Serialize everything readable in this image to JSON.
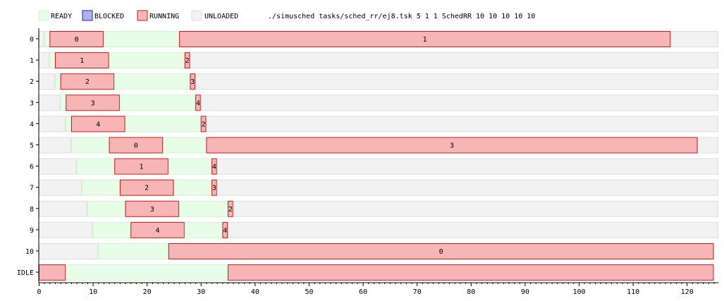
{
  "command_line": "./simusched tasks/sched_rr/ej8.tsk 5 1 1 SchedRR 10 10 10 10 10",
  "legend": [
    {
      "label": "READY",
      "state": "ready"
    },
    {
      "label": "BLOCKED",
      "state": "blocked"
    },
    {
      "label": "RUNNING",
      "state": "running"
    },
    {
      "label": "UNLOADED",
      "state": "unloaded"
    }
  ],
  "colors": {
    "ready_fill": "#e8fde8",
    "ready_stroke": "#d6f1d6",
    "blocked_fill": "#b0b0f0",
    "blocked_stroke": "#2a2a8f",
    "running_fill": "#f7b5b5",
    "running_stroke": "#c0201e",
    "unloaded_fill": "#f2f2f2",
    "unloaded_stroke": "#dddddd"
  },
  "chart_data": {
    "type": "gantt",
    "xlim": [
      0,
      126
    ],
    "x_ticks": [
      0,
      10,
      20,
      30,
      40,
      50,
      60,
      70,
      80,
      90,
      100,
      110,
      120
    ],
    "rows": [
      {
        "label": "0",
        "segments": [
          {
            "state": "unloaded",
            "start": 0,
            "end": 1
          },
          {
            "state": "ready",
            "start": 1,
            "end": 2
          },
          {
            "state": "running",
            "start": 2,
            "end": 12,
            "label": "0"
          },
          {
            "state": "ready",
            "start": 12,
            "end": 26
          },
          {
            "state": "running",
            "start": 26,
            "end": 117,
            "label": "1"
          },
          {
            "state": "unloaded",
            "start": 117,
            "end": 126
          }
        ]
      },
      {
        "label": "1",
        "segments": [
          {
            "state": "unloaded",
            "start": 0,
            "end": 2
          },
          {
            "state": "ready",
            "start": 2,
            "end": 3
          },
          {
            "state": "running",
            "start": 3,
            "end": 13,
            "label": "1"
          },
          {
            "state": "ready",
            "start": 13,
            "end": 27
          },
          {
            "state": "running",
            "start": 27,
            "end": 28,
            "label": "2"
          },
          {
            "state": "unloaded",
            "start": 28,
            "end": 126
          }
        ]
      },
      {
        "label": "2",
        "segments": [
          {
            "state": "unloaded",
            "start": 0,
            "end": 3
          },
          {
            "state": "ready",
            "start": 3,
            "end": 4
          },
          {
            "state": "running",
            "start": 4,
            "end": 14,
            "label": "2"
          },
          {
            "state": "ready",
            "start": 14,
            "end": 28
          },
          {
            "state": "running",
            "start": 28,
            "end": 29,
            "label": "3"
          },
          {
            "state": "unloaded",
            "start": 29,
            "end": 126
          }
        ]
      },
      {
        "label": "3",
        "segments": [
          {
            "state": "unloaded",
            "start": 0,
            "end": 4
          },
          {
            "state": "ready",
            "start": 4,
            "end": 5
          },
          {
            "state": "running",
            "start": 5,
            "end": 15,
            "label": "3"
          },
          {
            "state": "ready",
            "start": 15,
            "end": 29
          },
          {
            "state": "running",
            "start": 29,
            "end": 30,
            "label": "4"
          },
          {
            "state": "unloaded",
            "start": 30,
            "end": 126
          }
        ]
      },
      {
        "label": "4",
        "segments": [
          {
            "state": "unloaded",
            "start": 0,
            "end": 5
          },
          {
            "state": "ready",
            "start": 5,
            "end": 6
          },
          {
            "state": "running",
            "start": 6,
            "end": 16,
            "label": "4"
          },
          {
            "state": "ready",
            "start": 16,
            "end": 30
          },
          {
            "state": "running",
            "start": 30,
            "end": 31,
            "label": "2"
          },
          {
            "state": "unloaded",
            "start": 31,
            "end": 126
          }
        ]
      },
      {
        "label": "5",
        "segments": [
          {
            "state": "unloaded",
            "start": 0,
            "end": 6
          },
          {
            "state": "ready",
            "start": 6,
            "end": 13
          },
          {
            "state": "running",
            "start": 13,
            "end": 23,
            "label": "0"
          },
          {
            "state": "ready",
            "start": 23,
            "end": 31
          },
          {
            "state": "running",
            "start": 31,
            "end": 122,
            "label": "3"
          },
          {
            "state": "unloaded",
            "start": 122,
            "end": 126
          }
        ]
      },
      {
        "label": "6",
        "segments": [
          {
            "state": "unloaded",
            "start": 0,
            "end": 7
          },
          {
            "state": "ready",
            "start": 7,
            "end": 14
          },
          {
            "state": "running",
            "start": 14,
            "end": 24,
            "label": "1"
          },
          {
            "state": "ready",
            "start": 24,
            "end": 32
          },
          {
            "state": "running",
            "start": 32,
            "end": 33,
            "label": "4"
          },
          {
            "state": "unloaded",
            "start": 33,
            "end": 126
          }
        ]
      },
      {
        "label": "7",
        "segments": [
          {
            "state": "unloaded",
            "start": 0,
            "end": 8
          },
          {
            "state": "ready",
            "start": 8,
            "end": 15
          },
          {
            "state": "running",
            "start": 15,
            "end": 25,
            "label": "2"
          },
          {
            "state": "ready",
            "start": 25,
            "end": 32
          },
          {
            "state": "running",
            "start": 32,
            "end": 33,
            "label": "3"
          },
          {
            "state": "unloaded",
            "start": 33,
            "end": 126
          }
        ]
      },
      {
        "label": "8",
        "segments": [
          {
            "state": "unloaded",
            "start": 0,
            "end": 9
          },
          {
            "state": "ready",
            "start": 9,
            "end": 16
          },
          {
            "state": "running",
            "start": 16,
            "end": 26,
            "label": "3"
          },
          {
            "state": "ready",
            "start": 26,
            "end": 35
          },
          {
            "state": "running",
            "start": 35,
            "end": 36,
            "label": "2"
          },
          {
            "state": "unloaded",
            "start": 36,
            "end": 126
          }
        ]
      },
      {
        "label": "9",
        "segments": [
          {
            "state": "unloaded",
            "start": 0,
            "end": 10
          },
          {
            "state": "ready",
            "start": 10,
            "end": 17
          },
          {
            "state": "running",
            "start": 17,
            "end": 27,
            "label": "4"
          },
          {
            "state": "ready",
            "start": 27,
            "end": 34
          },
          {
            "state": "running",
            "start": 34,
            "end": 35,
            "label": "4"
          },
          {
            "state": "unloaded",
            "start": 35,
            "end": 126
          }
        ]
      },
      {
        "label": "10",
        "segments": [
          {
            "state": "unloaded",
            "start": 0,
            "end": 11
          },
          {
            "state": "ready",
            "start": 11,
            "end": 24
          },
          {
            "state": "running",
            "start": 24,
            "end": 125,
            "label": "0"
          }
        ]
      },
      {
        "label": "IDLE",
        "segments": [
          {
            "state": "running",
            "start": 0,
            "end": 5
          },
          {
            "state": "ready",
            "start": 5,
            "end": 35
          },
          {
            "state": "running",
            "start": 35,
            "end": 125
          }
        ]
      }
    ]
  }
}
